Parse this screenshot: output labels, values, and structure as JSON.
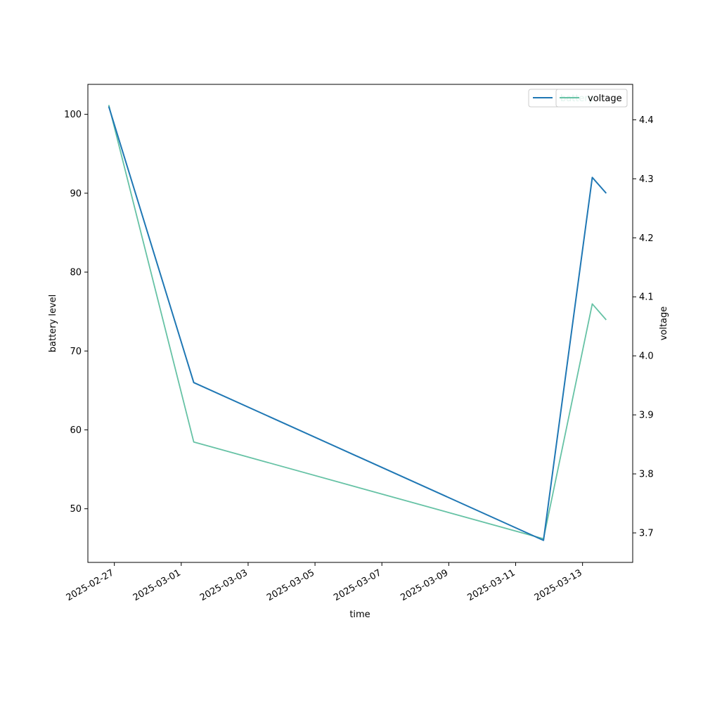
{
  "chart_data": {
    "type": "line",
    "xlabel": "time",
    "ylabel_left": "battery level",
    "ylabel_right": "voltage",
    "x_type": "date",
    "xlim": [
      "2025-02-26T05:00",
      "2025-03-14T12:00"
    ],
    "ylim_left": [
      43.2,
      103.8
    ],
    "ylim_right": [
      3.65,
      4.46
    ],
    "x_ticks": [
      "2025-02-27",
      "2025-03-01",
      "2025-03-03",
      "2025-03-05",
      "2025-03-07",
      "2025-03-09",
      "2025-03-11",
      "2025-03-13"
    ],
    "y_ticks_left": [
      50,
      60,
      70,
      80,
      90,
      100
    ],
    "y_ticks_right": [
      3.7,
      3.8,
      3.9,
      4.0,
      4.1,
      4.2,
      4.3,
      4.4
    ],
    "grid": false,
    "legend_left": {
      "position": "top-right",
      "entries": [
        "battery"
      ]
    },
    "legend_right": {
      "position": "top-right",
      "entries": [
        "voltage"
      ]
    },
    "series": [
      {
        "name": "battery",
        "axis": "left",
        "color": "#1f77b4",
        "x": [
          "2025-02-26T20:00",
          "2025-03-01T09:00",
          "2025-03-11T20:00",
          "2025-03-13T07:00",
          "2025-03-13T17:00"
        ],
        "y": [
          101,
          66,
          46,
          92,
          90
        ]
      },
      {
        "name": "voltage",
        "axis": "right",
        "color": "#66c2a5",
        "x": [
          "2025-02-26T20:00",
          "2025-03-01T09:00",
          "2025-03-11T20:00",
          "2025-03-13T07:00",
          "2025-03-13T17:00"
        ],
        "y": [
          4.425,
          3.854,
          3.69,
          4.088,
          4.061
        ]
      }
    ]
  }
}
